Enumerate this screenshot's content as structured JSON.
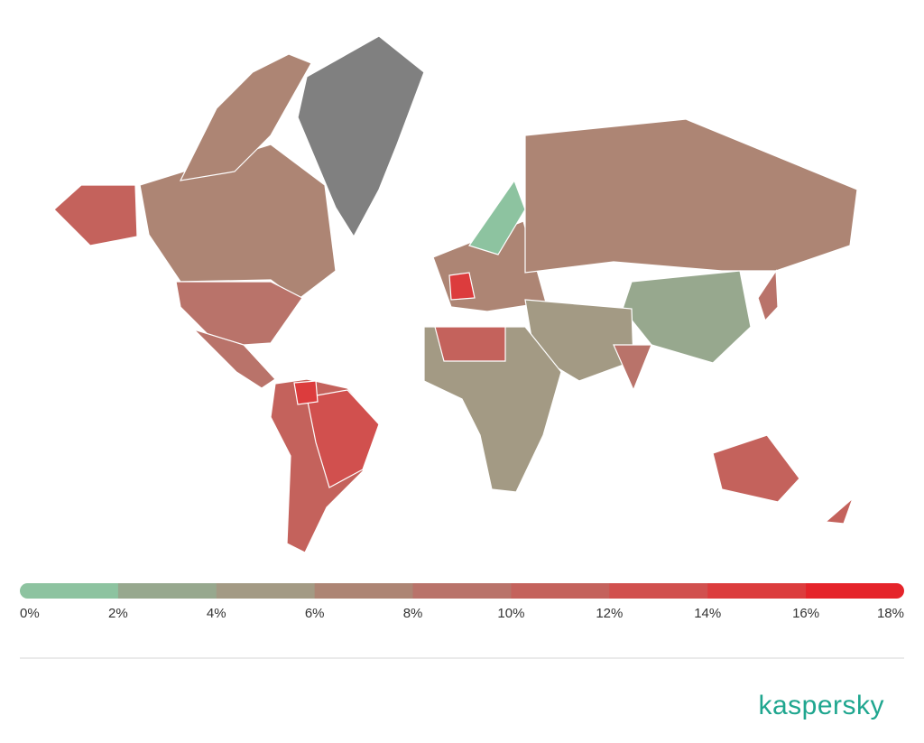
{
  "map": {
    "type": "choropleth",
    "legend": {
      "ticks": [
        {
          "value": 0,
          "label": "0%"
        },
        {
          "value": 2,
          "label": "2%"
        },
        {
          "value": 4,
          "label": "4%"
        },
        {
          "value": 6,
          "label": "6%"
        },
        {
          "value": 8,
          "label": "8%"
        },
        {
          "value": 10,
          "label": "10%"
        },
        {
          "value": 12,
          "label": "12%"
        },
        {
          "value": 14,
          "label": "14%"
        },
        {
          "value": 16,
          "label": "16%"
        },
        {
          "value": 18,
          "label": "18%"
        }
      ],
      "colors": [
        "#8dc3a0",
        "#97a88e",
        "#a39a84",
        "#ad8574",
        "#b9736a",
        "#c4625c",
        "#d1504e",
        "#dc3c3d",
        "#e5242a"
      ]
    },
    "no_data_color": "#808080"
  },
  "logo": "kaspersky"
}
